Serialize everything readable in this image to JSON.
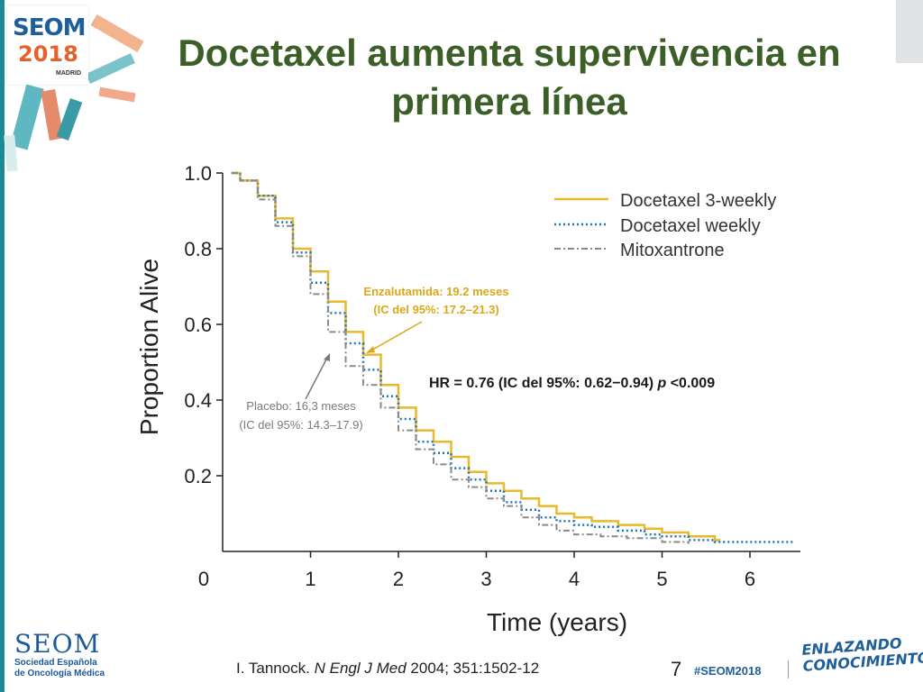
{
  "slide": {
    "title_line1": "Docetaxel aumenta supervivencia en",
    "title_line2": "primera línea",
    "citation_author": "I. Tannock.",
    "citation_journal": "N Engl J Med",
    "citation_rest": "2004; 351:1502-12",
    "slide_number": "7",
    "hashtag": "#SEOM2018",
    "slogan_line1": "ENLAZANDO",
    "slogan_line2": "CONOCIMIENTO"
  },
  "logo": {
    "name": "SEOM",
    "year": "2018",
    "city": "MADRID"
  },
  "footer_logo": {
    "name": "SEOM",
    "line1": "Sociedad Española",
    "line2": "de Oncología Médica"
  },
  "colors": {
    "title": "#3c5e27",
    "docetaxel_3weekly": "#e8b92c",
    "docetaxel_weekly": "#1e74b8",
    "mitoxantrone": "#8a8a8a",
    "enzalutamida_annotation": "#d9a919",
    "placebo_annotation": "#7a7a7a"
  },
  "annotations": {
    "enzalutamida_line1": "Enzalutamida: 19.2 meses",
    "enzalutamida_line2": "(IC del 95%: 17.2–21.3)",
    "placebo_line1": "Placebo: 16,3 meses",
    "placebo_line2": "(IC del 95%: 14.3–17.9)",
    "hr_text": "HR = 0.76 (IC del 95%: 0.62−0.94)",
    "hr_p_italic": "p",
    "hr_p_value": "<0.009"
  },
  "chart_data": {
    "type": "line",
    "xlabel": "Time (years)",
    "ylabel": "Proportion Alive",
    "xlim": [
      0,
      6.5
    ],
    "ylim": [
      0,
      1.0
    ],
    "x_ticks": [
      {
        "value": 1,
        "label": "1"
      },
      {
        "value": 2,
        "label": "2"
      },
      {
        "value": 3,
        "label": "3"
      },
      {
        "value": 4,
        "label": "4"
      },
      {
        "value": 5,
        "label": "5"
      },
      {
        "value": 6,
        "label": "6"
      }
    ],
    "y_ticks": [
      {
        "value": 0.2,
        "label": "0.2"
      },
      {
        "value": 0.4,
        "label": "0.4"
      },
      {
        "value": 0.6,
        "label": "0.6"
      },
      {
        "value": 0.8,
        "label": "0.8"
      },
      {
        "value": 1.0,
        "label": "1.0"
      }
    ],
    "origin_label": "0",
    "legend_position": "top-right",
    "series": [
      {
        "name": "Docetaxel 3-weekly",
        "style": "solid",
        "points": [
          [
            0.1,
            1.0
          ],
          [
            0.2,
            0.98
          ],
          [
            0.4,
            0.94
          ],
          [
            0.6,
            0.88
          ],
          [
            0.8,
            0.8
          ],
          [
            1.0,
            0.74
          ],
          [
            1.2,
            0.66
          ],
          [
            1.4,
            0.58
          ],
          [
            1.6,
            0.52
          ],
          [
            1.8,
            0.44
          ],
          [
            2.0,
            0.38
          ],
          [
            2.2,
            0.32
          ],
          [
            2.4,
            0.29
          ],
          [
            2.6,
            0.25
          ],
          [
            2.8,
            0.21
          ],
          [
            3.0,
            0.18
          ],
          [
            3.2,
            0.16
          ],
          [
            3.4,
            0.14
          ],
          [
            3.6,
            0.12
          ],
          [
            3.8,
            0.1
          ],
          [
            4.0,
            0.09
          ],
          [
            4.2,
            0.08
          ],
          [
            4.5,
            0.07
          ],
          [
            4.8,
            0.06
          ],
          [
            5.0,
            0.05
          ],
          [
            5.3,
            0.04
          ],
          [
            5.6,
            0.03
          ],
          [
            5.65,
            0.025
          ]
        ]
      },
      {
        "name": "Docetaxel weekly",
        "style": "dotted",
        "points": [
          [
            0.1,
            1.0
          ],
          [
            0.2,
            0.98
          ],
          [
            0.4,
            0.94
          ],
          [
            0.6,
            0.87
          ],
          [
            0.8,
            0.79
          ],
          [
            1.0,
            0.71
          ],
          [
            1.2,
            0.63
          ],
          [
            1.4,
            0.55
          ],
          [
            1.6,
            0.48
          ],
          [
            1.8,
            0.41
          ],
          [
            2.0,
            0.35
          ],
          [
            2.2,
            0.29
          ],
          [
            2.4,
            0.26
          ],
          [
            2.6,
            0.22
          ],
          [
            2.8,
            0.19
          ],
          [
            3.0,
            0.16
          ],
          [
            3.2,
            0.13
          ],
          [
            3.4,
            0.11
          ],
          [
            3.6,
            0.09
          ],
          [
            3.8,
            0.08
          ],
          [
            4.0,
            0.07
          ],
          [
            4.2,
            0.065
          ],
          [
            4.5,
            0.055
          ],
          [
            4.8,
            0.045
          ],
          [
            5.0,
            0.04
          ],
          [
            5.3,
            0.03
          ],
          [
            5.6,
            0.025
          ],
          [
            6.0,
            0.025
          ],
          [
            6.5,
            0.025
          ]
        ]
      },
      {
        "name": "Mitoxantrone",
        "style": "dash-dot",
        "points": [
          [
            0.1,
            1.0
          ],
          [
            0.2,
            0.98
          ],
          [
            0.4,
            0.93
          ],
          [
            0.6,
            0.86
          ],
          [
            0.8,
            0.78
          ],
          [
            1.0,
            0.68
          ],
          [
            1.2,
            0.58
          ],
          [
            1.4,
            0.49
          ],
          [
            1.6,
            0.44
          ],
          [
            1.8,
            0.38
          ],
          [
            2.0,
            0.32
          ],
          [
            2.2,
            0.27
          ],
          [
            2.4,
            0.23
          ],
          [
            2.6,
            0.19
          ],
          [
            2.8,
            0.17
          ],
          [
            3.0,
            0.14
          ],
          [
            3.2,
            0.12
          ],
          [
            3.4,
            0.09
          ],
          [
            3.6,
            0.07
          ],
          [
            3.8,
            0.055
          ],
          [
            4.0,
            0.045
          ],
          [
            4.3,
            0.04
          ],
          [
            4.6,
            0.035
          ],
          [
            5.0,
            0.025
          ],
          [
            5.3,
            0.02
          ]
        ]
      }
    ]
  }
}
